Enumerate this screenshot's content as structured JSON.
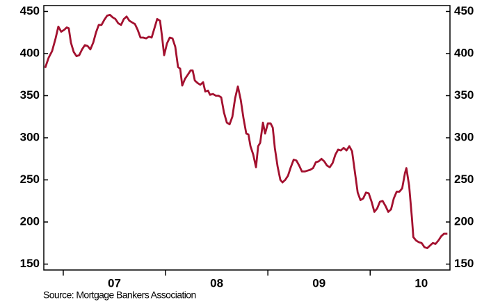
{
  "chart_data": {
    "type": "line",
    "source": "Source:  Mortgage Bankers Association",
    "x": [
      6.823,
      6.857,
      6.891,
      6.925,
      6.952,
      6.98,
      7.007,
      7.034,
      7.054,
      7.075,
      7.102,
      7.129,
      7.156,
      7.184,
      7.211,
      7.238,
      7.265,
      7.293,
      7.32,
      7.347,
      7.374,
      7.401,
      7.429,
      7.456,
      7.483,
      7.51,
      7.537,
      7.565,
      7.592,
      7.619,
      7.646,
      7.673,
      7.701,
      7.728,
      7.755,
      7.782,
      7.81,
      7.837,
      7.864,
      7.891,
      7.918,
      7.946,
      7.966,
      7.986,
      8.014,
      8.041,
      8.068,
      8.095,
      8.122,
      8.143,
      8.163,
      8.19,
      8.218,
      8.245,
      8.265,
      8.286,
      8.313,
      8.34,
      8.367,
      8.388,
      8.415,
      8.435,
      8.463,
      8.49,
      8.517,
      8.544,
      8.571,
      8.599,
      8.626,
      8.653,
      8.68,
      8.707,
      8.735,
      8.762,
      8.789,
      8.81,
      8.83,
      8.857,
      8.884,
      8.905,
      8.925,
      8.952,
      8.973,
      9.0,
      9.027,
      9.048,
      9.068,
      9.095,
      9.122,
      9.143,
      9.17,
      9.197,
      9.224,
      9.252,
      9.279,
      9.306,
      9.333,
      9.361,
      9.388,
      9.415,
      9.442,
      9.469,
      9.497,
      9.524,
      9.551,
      9.578,
      9.605,
      9.633,
      9.66,
      9.687,
      9.714,
      9.741,
      9.769,
      9.796,
      9.823,
      9.85,
      9.878,
      9.905,
      9.932,
      9.959,
      9.986,
      10.014,
      10.041,
      10.068,
      10.095,
      10.122,
      10.15,
      10.177,
      10.204,
      10.231,
      10.259,
      10.286,
      10.313,
      10.34,
      10.354,
      10.381,
      10.408,
      10.422,
      10.449,
      10.476,
      10.503,
      10.531,
      10.558,
      10.585,
      10.612,
      10.639,
      10.667,
      10.694,
      10.721,
      10.755
    ],
    "series": [
      {
        "color": "#a3112f",
        "values": [
          383,
          395,
          403,
          418,
          432,
          426,
          428,
          431,
          430,
          413,
          402,
          397,
          398,
          405,
          410,
          409,
          405,
          413,
          425,
          434,
          434,
          440,
          445,
          446,
          443,
          441,
          436,
          434,
          441,
          444,
          439,
          437,
          435,
          428,
          419,
          419,
          418,
          420,
          419,
          430,
          441,
          439,
          420,
          398,
          412,
          419,
          418,
          408,
          384,
          382,
          362,
          370,
          375,
          380,
          380,
          368,
          365,
          363,
          366,
          355,
          356,
          351,
          352,
          350,
          350,
          348,
          330,
          318,
          316,
          325,
          347,
          361,
          345,
          323,
          305,
          304,
          290,
          280,
          265,
          290,
          294,
          318,
          305,
          317,
          317,
          312,
          288,
          266,
          250,
          247,
          250,
          255,
          265,
          274,
          273,
          267,
          260,
          260,
          261,
          262,
          264,
          271,
          272,
          275,
          272,
          267,
          265,
          270,
          280,
          286,
          285,
          288,
          285,
          290,
          284,
          260,
          235,
          226,
          228,
          235,
          234,
          224,
          212,
          216,
          224,
          225,
          219,
          212,
          215,
          228,
          236,
          236,
          240,
          258,
          264,
          243,
          205,
          182,
          178,
          176,
          175,
          170,
          169,
          172,
          175,
          174,
          178,
          183,
          186,
          186
        ]
      }
    ],
    "xlim": [
      6.81,
      10.78
    ],
    "xticks": [
      {
        "value": 7.5,
        "label": "07"
      },
      {
        "value": 8.5,
        "label": "08"
      },
      {
        "value": 9.5,
        "label": "09"
      },
      {
        "value": 10.5,
        "label": "10"
      }
    ],
    "xminor": [
      7,
      8,
      9,
      10
    ],
    "ylim": [
      143,
      457
    ],
    "yticks": [
      150,
      200,
      250,
      300,
      350,
      400,
      450
    ]
  }
}
